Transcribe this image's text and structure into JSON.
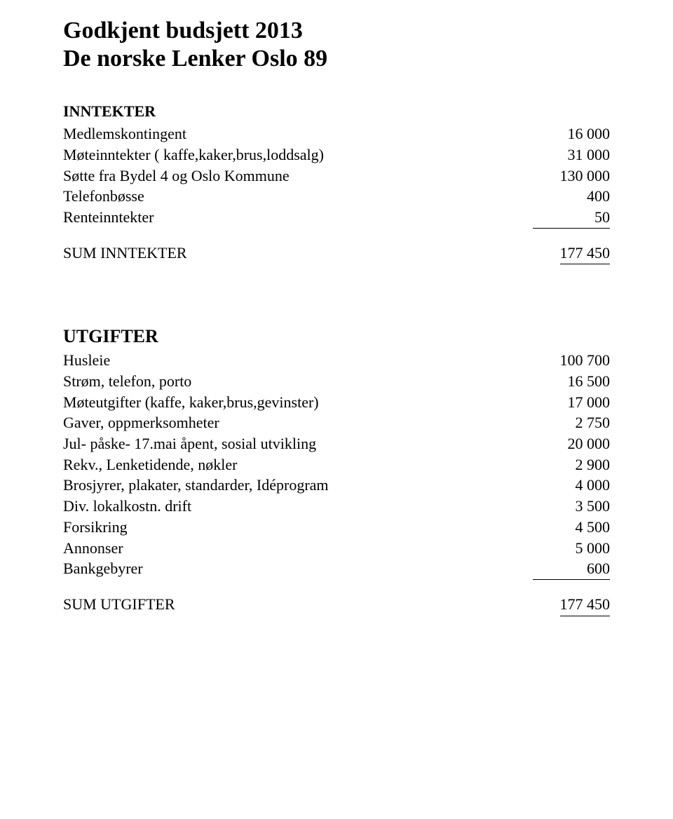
{
  "title_line1": "Godkjent budsjett 2013",
  "title_line2": "De norske Lenker Oslo 89",
  "inntekter": {
    "heading": "INNTEKTER",
    "rows": [
      {
        "label": "Medlemskontingent",
        "value": "16 000"
      },
      {
        "label": "Møteinntekter ( kaffe,kaker,brus,loddsalg)",
        "value": "31 000"
      },
      {
        "label": "Søtte fra Bydel 4 og Oslo Kommune",
        "value": "130 000"
      },
      {
        "label": "Telefonbøsse",
        "value": "400"
      },
      {
        "label": "Renteinntekter",
        "value": "50"
      }
    ],
    "sum_label": "SUM INNTEKTER",
    "sum_value": "177 450"
  },
  "utgifter": {
    "heading": "UTGIFTER",
    "rows": [
      {
        "label": "Husleie",
        "value": "100 700"
      },
      {
        "label": "Strøm, telefon, porto",
        "value": "16 500"
      },
      {
        "label": "Møteutgifter (kaffe, kaker,brus,gevinster)",
        "value": "17 000"
      },
      {
        "label": "Gaver, oppmerksomheter",
        "value": "2 750"
      },
      {
        "label": "Jul- påske- 17.mai åpent, sosial utvikling",
        "value": "20 000"
      },
      {
        "label": "Rekv., Lenketidende, nøkler",
        "value": "2 900"
      },
      {
        "label": "Brosjyrer, plakater, standarder, Idéprogram",
        "value": "4 000"
      },
      {
        "label": "Div. lokalkostn. drift",
        "value": "3 500"
      },
      {
        "label": "Forsikring",
        "value": "4 500"
      },
      {
        "label": "Annonser",
        "value": "5 000"
      },
      {
        "label": "Bankgebyrer",
        "value": "600"
      }
    ],
    "sum_label": "SUM UTGIFTER",
    "sum_value": "177 450"
  }
}
